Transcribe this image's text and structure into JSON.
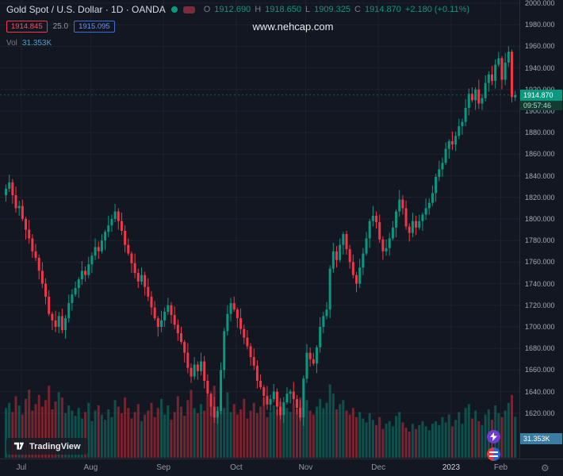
{
  "legend": {
    "symbol_title": "Gold Spot / U.S. Dollar · 1D · OANDA",
    "ohlc": {
      "o_label": "O",
      "o": "1912.690",
      "h_label": "H",
      "h": "1918.650",
      "l_label": "L",
      "l": "1909.325",
      "c_label": "C",
      "c": "1914.870",
      "change": "+2.180 (+0.11%)"
    },
    "bid": "1914.845",
    "spread": "25.0",
    "ask": "1915.095",
    "vol_label": "Vol",
    "vol_value": "31.353K"
  },
  "watermark": "www.nehcap.com",
  "price_axis": {
    "labels": [
      "2000.000",
      "1980.000",
      "1960.000",
      "1940.000",
      "1920.000",
      "1900.000",
      "1880.000",
      "1860.000",
      "1840.000",
      "1820.000",
      "1800.000",
      "1780.000",
      "1760.000",
      "1740.000",
      "1720.000",
      "1700.000",
      "1680.000",
      "1660.000",
      "1640.000",
      "1620.000"
    ],
    "last_price_label": "1914.870",
    "countdown": "09:57:46",
    "volume_label": "31.353K"
  },
  "branding": {
    "logo_text": "TradingView"
  },
  "colors": {
    "background": "#131722",
    "up": "#089981",
    "down": "#f23645",
    "grid": "#1e222d",
    "axis_text": "#a6a9b1",
    "volume_accent": "#4aa3c4"
  },
  "chart_data": {
    "type": "candlestick",
    "title": "Gold Spot / U.S. Dollar",
    "timeframe": "1D",
    "source": "OANDA",
    "y_range": [
      1600,
      2005
    ],
    "y_tick_step": 20,
    "last_close": 1914.87,
    "months": [
      {
        "label": "Jul",
        "index": 5,
        "highlight": false
      },
      {
        "label": "Aug",
        "index": 26,
        "highlight": false
      },
      {
        "label": "Sep",
        "index": 48,
        "highlight": false
      },
      {
        "label": "Oct",
        "index": 70,
        "highlight": false
      },
      {
        "label": "Nov",
        "index": 91,
        "highlight": false
      },
      {
        "label": "Dec",
        "index": 113,
        "highlight": false
      },
      {
        "label": "2023",
        "index": 135,
        "highlight": true
      },
      {
        "label": "Feb",
        "index": 150,
        "highlight": false
      }
    ],
    "candles": [
      [
        1822,
        1832,
        1816,
        1828
      ],
      [
        1828,
        1841,
        1825,
        1834
      ],
      [
        1834,
        1837,
        1814,
        1822
      ],
      [
        1822,
        1830,
        1806,
        1810
      ],
      [
        1810,
        1817,
        1803,
        1812
      ],
      [
        1812,
        1818,
        1798,
        1800
      ],
      [
        1800,
        1802,
        1781,
        1790
      ],
      [
        1790,
        1799,
        1777,
        1782
      ],
      [
        1782,
        1786,
        1764,
        1770
      ],
      [
        1770,
        1777,
        1761,
        1764
      ],
      [
        1764,
        1767,
        1744,
        1752
      ],
      [
        1752,
        1760,
        1736,
        1740
      ],
      [
        1740,
        1745,
        1721,
        1728
      ],
      [
        1728,
        1734,
        1710,
        1712
      ],
      [
        1712,
        1714,
        1697,
        1706
      ],
      [
        1706,
        1715,
        1695,
        1700
      ],
      [
        1700,
        1714,
        1694,
        1710
      ],
      [
        1710,
        1717,
        1694,
        1697
      ],
      [
        1697,
        1711,
        1689,
        1708
      ],
      [
        1708,
        1730,
        1704,
        1722
      ],
      [
        1722,
        1735,
        1715,
        1730
      ],
      [
        1730,
        1742,
        1728,
        1736
      ],
      [
        1736,
        1746,
        1727,
        1744
      ],
      [
        1744,
        1761,
        1739,
        1752
      ],
      [
        1752,
        1756,
        1742,
        1748
      ],
      [
        1748,
        1765,
        1745,
        1758
      ],
      [
        1758,
        1769,
        1750,
        1766
      ],
      [
        1766,
        1782,
        1762,
        1774
      ],
      [
        1774,
        1779,
        1763,
        1770
      ],
      [
        1770,
        1786,
        1768,
        1780
      ],
      [
        1780,
        1790,
        1771,
        1788
      ],
      [
        1788,
        1803,
        1783,
        1794
      ],
      [
        1794,
        1804,
        1788,
        1800
      ],
      [
        1800,
        1814,
        1797,
        1807
      ],
      [
        1807,
        1810,
        1790,
        1798
      ],
      [
        1798,
        1806,
        1785,
        1789
      ],
      [
        1789,
        1794,
        1769,
        1776
      ],
      [
        1776,
        1782,
        1766,
        1768
      ],
      [
        1768,
        1770,
        1750,
        1759
      ],
      [
        1759,
        1768,
        1745,
        1750
      ],
      [
        1750,
        1754,
        1736,
        1742
      ],
      [
        1742,
        1755,
        1739,
        1748
      ],
      [
        1748,
        1751,
        1729,
        1737
      ],
      [
        1737,
        1745,
        1724,
        1728
      ],
      [
        1728,
        1733,
        1711,
        1718
      ],
      [
        1718,
        1724,
        1706,
        1708
      ],
      [
        1708,
        1710,
        1691,
        1700
      ],
      [
        1700,
        1715,
        1695,
        1706
      ],
      [
        1706,
        1718,
        1700,
        1714
      ],
      [
        1714,
        1727,
        1711,
        1720
      ],
      [
        1720,
        1723,
        1703,
        1711
      ],
      [
        1711,
        1719,
        1698,
        1702
      ],
      [
        1702,
        1707,
        1687,
        1694
      ],
      [
        1694,
        1700,
        1684,
        1686
      ],
      [
        1686,
        1688,
        1667,
        1676
      ],
      [
        1676,
        1685,
        1657,
        1662
      ],
      [
        1662,
        1666,
        1648,
        1654
      ],
      [
        1654,
        1672,
        1651,
        1665
      ],
      [
        1665,
        1668,
        1651,
        1659
      ],
      [
        1659,
        1676,
        1655,
        1668
      ],
      [
        1668,
        1673,
        1643,
        1650
      ],
      [
        1650,
        1656,
        1636,
        1638
      ],
      [
        1638,
        1640,
        1617,
        1626
      ],
      [
        1626,
        1635,
        1611,
        1616
      ],
      [
        1616,
        1626,
        1610,
        1622
      ],
      [
        1622,
        1667,
        1619,
        1660
      ],
      [
        1660,
        1699,
        1652,
        1696
      ],
      [
        1696,
        1720,
        1692,
        1712
      ],
      [
        1712,
        1727,
        1705,
        1722
      ],
      [
        1722,
        1728,
        1714,
        1716
      ],
      [
        1716,
        1718,
        1699,
        1708
      ],
      [
        1708,
        1717,
        1693,
        1698
      ],
      [
        1698,
        1702,
        1684,
        1690
      ],
      [
        1690,
        1697,
        1679,
        1682
      ],
      [
        1682,
        1685,
        1664,
        1672
      ],
      [
        1672,
        1680,
        1660,
        1664
      ],
      [
        1664,
        1669,
        1643,
        1650
      ],
      [
        1650,
        1656,
        1642,
        1644
      ],
      [
        1644,
        1646,
        1627,
        1636
      ],
      [
        1636,
        1645,
        1623,
        1628
      ],
      [
        1628,
        1637,
        1622,
        1633
      ],
      [
        1633,
        1647,
        1630,
        1640
      ],
      [
        1640,
        1643,
        1618,
        1626
      ],
      [
        1626,
        1634,
        1614,
        1618
      ],
      [
        1618,
        1635,
        1611,
        1630
      ],
      [
        1630,
        1644,
        1628,
        1638
      ],
      [
        1638,
        1642,
        1629,
        1640
      ],
      [
        1640,
        1649,
        1628,
        1633
      ],
      [
        1633,
        1637,
        1619,
        1625
      ],
      [
        1625,
        1632,
        1613,
        1616
      ],
      [
        1616,
        1655,
        1608,
        1652
      ],
      [
        1652,
        1684,
        1648,
        1676
      ],
      [
        1676,
        1681,
        1663,
        1670
      ],
      [
        1670,
        1676,
        1664,
        1666
      ],
      [
        1666,
        1683,
        1657,
        1681
      ],
      [
        1681,
        1709,
        1676,
        1700
      ],
      [
        1700,
        1714,
        1694,
        1710
      ],
      [
        1710,
        1723,
        1707,
        1716
      ],
      [
        1716,
        1757,
        1708,
        1754
      ],
      [
        1754,
        1778,
        1750,
        1770
      ],
      [
        1770,
        1775,
        1755,
        1762
      ],
      [
        1762,
        1782,
        1760,
        1776
      ],
      [
        1776,
        1788,
        1767,
        1786
      ],
      [
        1786,
        1789,
        1767,
        1772
      ],
      [
        1772,
        1776,
        1754,
        1760
      ],
      [
        1760,
        1767,
        1745,
        1748
      ],
      [
        1748,
        1751,
        1732,
        1740
      ],
      [
        1740,
        1763,
        1736,
        1755
      ],
      [
        1755,
        1773,
        1748,
        1768
      ],
      [
        1768,
        1788,
        1766,
        1782
      ],
      [
        1782,
        1800,
        1773,
        1798
      ],
      [
        1798,
        1812,
        1793,
        1803
      ],
      [
        1803,
        1807,
        1791,
        1797
      ],
      [
        1797,
        1804,
        1778,
        1781
      ],
      [
        1781,
        1784,
        1762,
        1770
      ],
      [
        1770,
        1781,
        1766,
        1773
      ],
      [
        1773,
        1787,
        1766,
        1782
      ],
      [
        1782,
        1798,
        1780,
        1792
      ],
      [
        1792,
        1809,
        1783,
        1807
      ],
      [
        1807,
        1827,
        1802,
        1818
      ],
      [
        1818,
        1822,
        1804,
        1810
      ],
      [
        1810,
        1817,
        1790,
        1793
      ],
      [
        1793,
        1796,
        1779,
        1787
      ],
      [
        1787,
        1806,
        1783,
        1798
      ],
      [
        1798,
        1803,
        1785,
        1792
      ],
      [
        1792,
        1804,
        1790,
        1798
      ],
      [
        1798,
        1806,
        1789,
        1804
      ],
      [
        1804,
        1819,
        1799,
        1810
      ],
      [
        1810,
        1819,
        1804,
        1815
      ],
      [
        1815,
        1831,
        1812,
        1824
      ],
      [
        1824,
        1842,
        1816,
        1839
      ],
      [
        1839,
        1854,
        1835,
        1846
      ],
      [
        1846,
        1857,
        1839,
        1852
      ],
      [
        1852,
        1871,
        1850,
        1865
      ],
      [
        1865,
        1874,
        1856,
        1872
      ],
      [
        1872,
        1881,
        1864,
        1869
      ],
      [
        1869,
        1881,
        1863,
        1877
      ],
      [
        1877,
        1893,
        1874,
        1886
      ],
      [
        1886,
        1893,
        1878,
        1890
      ],
      [
        1890,
        1911,
        1886,
        1903
      ],
      [
        1903,
        1921,
        1896,
        1916
      ],
      [
        1916,
        1922,
        1908,
        1910
      ],
      [
        1910,
        1922,
        1901,
        1920
      ],
      [
        1920,
        1929,
        1902,
        1907
      ],
      [
        1907,
        1916,
        1901,
        1912
      ],
      [
        1912,
        1933,
        1909,
        1926
      ],
      [
        1926,
        1937,
        1918,
        1934
      ],
      [
        1934,
        1942,
        1924,
        1928
      ],
      [
        1928,
        1948,
        1921,
        1943
      ],
      [
        1943,
        1955,
        1941,
        1949
      ],
      [
        1949,
        1951,
        1920,
        1929
      ],
      [
        1929,
        1954,
        1924,
        1945
      ],
      [
        1945,
        1960,
        1941,
        1955
      ],
      [
        1955,
        1957,
        1908,
        1913
      ],
      [
        1912.69,
        1918.65,
        1909.325,
        1914.87
      ]
    ],
    "volumes": [
      38,
      42,
      35,
      47,
      40,
      33,
      45,
      52,
      36,
      41,
      48,
      39,
      44,
      55,
      37,
      43,
      50,
      46,
      34,
      40,
      36,
      32,
      38,
      30,
      35,
      42,
      28,
      36,
      40,
      33,
      29,
      37,
      31,
      44,
      39,
      34,
      46,
      38,
      30,
      35,
      41,
      28,
      33,
      36,
      42,
      31,
      38,
      45,
      33,
      40,
      29,
      35,
      47,
      39,
      32,
      44,
      52,
      38,
      34,
      41,
      36,
      48,
      43,
      55,
      39,
      44,
      38,
      50,
      35,
      41,
      33,
      37,
      45,
      30,
      36,
      42,
      34,
      39,
      46,
      31,
      35,
      40,
      37,
      43,
      32,
      38,
      35,
      41,
      37,
      46,
      58,
      44,
      36,
      33,
      39,
      45,
      38,
      42,
      56,
      49,
      37,
      41,
      44,
      36,
      33,
      38,
      31,
      35,
      30,
      27,
      34,
      29,
      25,
      31,
      22,
      26,
      28,
      24,
      32,
      35,
      27,
      23,
      20,
      26,
      22,
      25,
      28,
      24,
      21,
      26,
      28,
      25,
      31,
      27,
      33,
      24,
      29,
      35,
      26,
      38,
      41,
      30,
      36,
      28,
      25,
      33,
      37,
      29,
      40,
      34,
      31,
      36,
      42,
      48,
      31.353
    ]
  }
}
